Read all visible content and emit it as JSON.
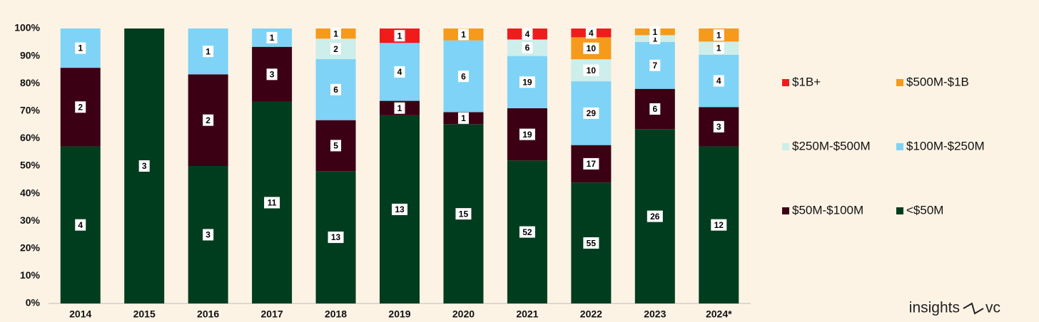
{
  "chart_data": {
    "type": "bar",
    "stack": "percent",
    "categories": [
      "2014",
      "2015",
      "2016",
      "2017",
      "2018",
      "2019",
      "2020",
      "2021",
      "2022",
      "2023",
      "2024*"
    ],
    "series": [
      {
        "name": "<$50M",
        "color": "#003d1f",
        "values": [
          4,
          3,
          3,
          11,
          13,
          13,
          15,
          52,
          55,
          26,
          12
        ]
      },
      {
        "name": "$50M-$100M",
        "color": "#3b0014",
        "values": [
          2,
          0,
          2,
          3,
          5,
          1,
          1,
          19,
          17,
          6,
          3
        ]
      },
      {
        "name": "$100M-$250M",
        "color": "#7fd3f7",
        "values": [
          1,
          0,
          1,
          1,
          6,
          4,
          6,
          19,
          29,
          7,
          4
        ]
      },
      {
        "name": "$250M-$500M",
        "color": "#cdeeea",
        "values": [
          0,
          0,
          0,
          0,
          2,
          0,
          0,
          6,
          10,
          1,
          1
        ]
      },
      {
        "name": "$500M-$1B",
        "color": "#f59a1b",
        "values": [
          0,
          0,
          0,
          0,
          1,
          0,
          1,
          0,
          10,
          1,
          1
        ]
      },
      {
        "name": "$1B+",
        "color": "#f01c1c",
        "values": [
          0,
          0,
          0,
          0,
          0,
          1,
          0,
          4,
          4,
          0,
          0
        ]
      }
    ],
    "ylim": [
      0,
      100
    ],
    "yticks": [
      {
        "value": 0,
        "label": "0%"
      },
      {
        "value": 10,
        "label": "10%"
      },
      {
        "value": 20,
        "label": "20%"
      },
      {
        "value": 30,
        "label": "30%"
      },
      {
        "value": 40,
        "label": "40%"
      },
      {
        "value": 50,
        "label": "50%"
      },
      {
        "value": 60,
        "label": "60%"
      },
      {
        "value": 70,
        "label": "70%"
      },
      {
        "value": 80,
        "label": "80%"
      },
      {
        "value": 90,
        "label": "90%"
      },
      {
        "value": 100,
        "label": "100%"
      }
    ],
    "legend": "right",
    "watermark": {
      "left": "insights",
      "right": "vc"
    }
  }
}
